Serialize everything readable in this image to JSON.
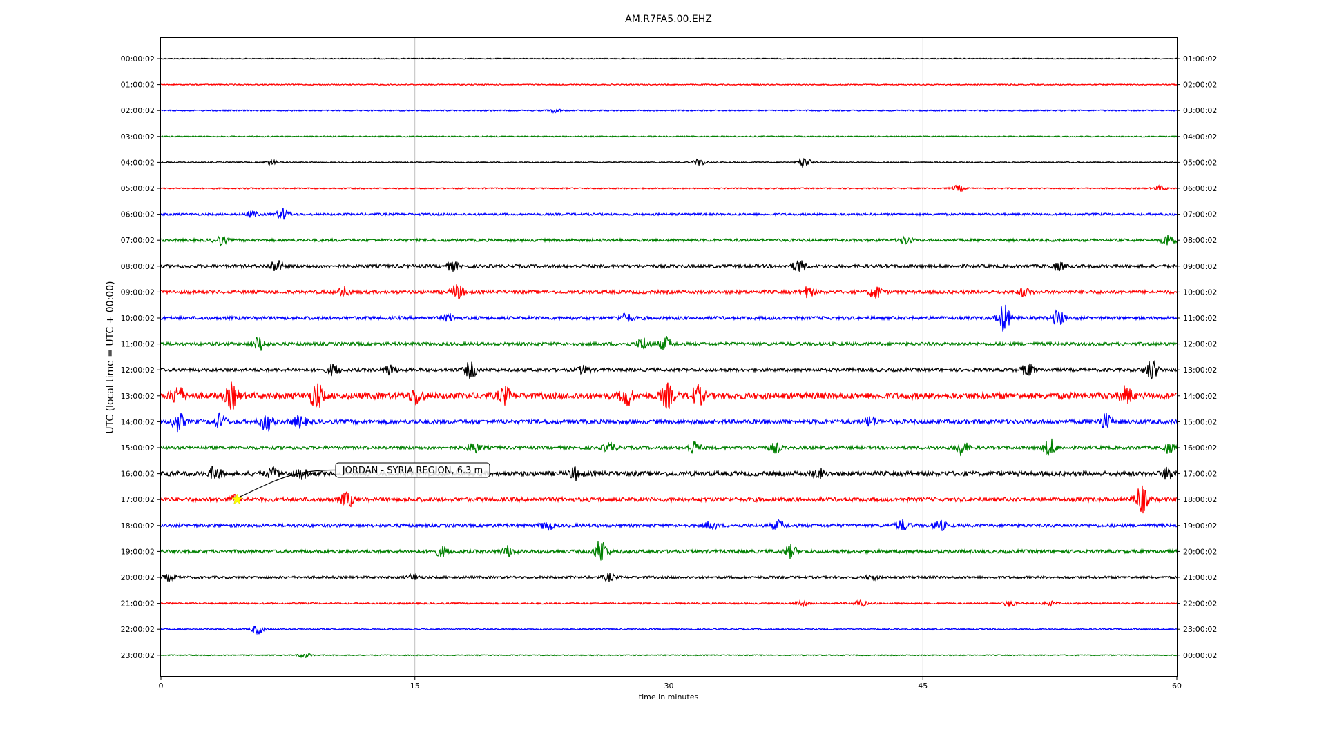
{
  "chart_data": {
    "type": "line",
    "title": "AM.R7FA5.00.EHZ",
    "xlabel": "time in minutes",
    "ylabel": "UTC (local time = UTC + 00:00)",
    "xlim": [
      0,
      60
    ],
    "x_ticks": [
      0,
      15,
      30,
      45,
      60
    ],
    "grid": "vertical",
    "colors": [
      "#000000",
      "#ff0000",
      "#0000ff",
      "#008000"
    ],
    "rows": [
      {
        "left": "00:00:02",
        "right": "01:00:02",
        "amp": 0.12,
        "events": []
      },
      {
        "left": "01:00:02",
        "right": "02:00:02",
        "amp": 0.14,
        "events": []
      },
      {
        "left": "02:00:02",
        "right": "03:00:02",
        "amp": 0.16,
        "events": [
          [
            23.3,
            0.5
          ]
        ]
      },
      {
        "left": "03:00:02",
        "right": "04:00:02",
        "amp": 0.15,
        "events": []
      },
      {
        "left": "04:00:02",
        "right": "05:00:02",
        "amp": 0.15,
        "events": [
          [
            6.5,
            0.6
          ],
          [
            31.8,
            0.9
          ],
          [
            38,
            1.4
          ]
        ]
      },
      {
        "left": "05:00:02",
        "right": "06:00:02",
        "amp": 0.16,
        "events": [
          [
            47.1,
            0.8
          ],
          [
            59,
            0.6
          ]
        ]
      },
      {
        "left": "06:00:02",
        "right": "07:00:02",
        "amp": 0.28,
        "events": [
          [
            5.4,
            0.8
          ],
          [
            7.2,
            1.5
          ]
        ]
      },
      {
        "left": "07:00:02",
        "right": "08:00:02",
        "amp": 0.35,
        "events": [
          [
            3.5,
            1.2
          ],
          [
            44,
            0.9
          ],
          [
            59.5,
            1.6
          ]
        ]
      },
      {
        "left": "08:00:02",
        "right": "09:00:02",
        "amp": 0.42,
        "events": [
          [
            6.8,
            1.5
          ],
          [
            17.2,
            1.1
          ],
          [
            37.7,
            1.8
          ],
          [
            53,
            1.0
          ]
        ]
      },
      {
        "left": "09:00:02",
        "right": "10:00:02",
        "amp": 0.42,
        "events": [
          [
            10.8,
            1.2
          ],
          [
            17.5,
            2.0
          ],
          [
            38.2,
            1.3
          ],
          [
            42.2,
            1.8
          ],
          [
            51,
            1.0
          ]
        ]
      },
      {
        "left": "10:00:02",
        "right": "11:00:02",
        "amp": 0.42,
        "events": [
          [
            17,
            0.9
          ],
          [
            27.5,
            1.1
          ],
          [
            49.8,
            3.6
          ],
          [
            53,
            1.9
          ]
        ]
      },
      {
        "left": "11:00:02",
        "right": "12:00:02",
        "amp": 0.42,
        "events": [
          [
            5.8,
            1.8
          ],
          [
            28.5,
            1.6
          ],
          [
            29.8,
            1.8
          ]
        ]
      },
      {
        "left": "12:00:02",
        "right": "13:00:02",
        "amp": 0.42,
        "events": [
          [
            10.2,
            1.5
          ],
          [
            13.5,
            1.3
          ],
          [
            18.3,
            2.1
          ],
          [
            25,
            1.0
          ],
          [
            51.2,
            1.6
          ],
          [
            58.5,
            2.6
          ]
        ]
      },
      {
        "left": "13:00:02",
        "right": "14:00:02",
        "amp": 0.85,
        "events": [
          [
            1,
            2.4
          ],
          [
            4.2,
            3.0
          ],
          [
            9.2,
            3.2
          ],
          [
            15.1,
            2.1
          ],
          [
            20.3,
            2.0
          ],
          [
            27.5,
            2.4
          ],
          [
            29.9,
            2.8
          ],
          [
            31.7,
            2.4
          ],
          [
            57,
            2.1
          ]
        ]
      },
      {
        "left": "14:00:02",
        "right": "15:00:02",
        "amp": 0.55,
        "events": [
          [
            1,
            2.4
          ],
          [
            3.5,
            2.0
          ],
          [
            6.2,
            2.3
          ],
          [
            8.2,
            1.5
          ],
          [
            41.9,
            1.3
          ],
          [
            55.8,
            2.0
          ]
        ]
      },
      {
        "left": "15:00:02",
        "right": "16:00:02",
        "amp": 0.42,
        "events": [
          [
            18.5,
            1.4
          ],
          [
            26.5,
            1.3
          ],
          [
            31.5,
            1.6
          ],
          [
            36.3,
            1.2
          ],
          [
            47.3,
            1.9
          ],
          [
            52.5,
            2.2
          ],
          [
            59.5,
            1.2
          ]
        ]
      },
      {
        "left": "16:00:02",
        "right": "17:00:02",
        "amp": 0.6,
        "events": [
          [
            3.2,
            1.6
          ],
          [
            6.6,
            1.2
          ],
          [
            8.3,
            1.1
          ],
          [
            24.5,
            1.5
          ],
          [
            38.9,
            1.0
          ],
          [
            59.5,
            1.5
          ]
        ]
      },
      {
        "left": "17:00:02",
        "right": "18:00:02",
        "amp": 0.55,
        "events": [
          [
            4.4,
            1.0
          ],
          [
            11,
            1.9
          ],
          [
            57.9,
            3.6
          ]
        ]
      },
      {
        "left": "18:00:02",
        "right": "19:00:02",
        "amp": 0.42,
        "events": [
          [
            22.8,
            1.2
          ],
          [
            32.5,
            1.1
          ],
          [
            36.5,
            1.2
          ],
          [
            43.8,
            1.3
          ],
          [
            46,
            1.3
          ]
        ]
      },
      {
        "left": "19:00:02",
        "right": "20:00:02",
        "amp": 0.42,
        "events": [
          [
            16.6,
            1.3
          ],
          [
            20.5,
            1.3
          ],
          [
            26,
            3.3
          ],
          [
            37.2,
            1.6
          ]
        ]
      },
      {
        "left": "20:00:02",
        "right": "21:00:02",
        "amp": 0.32,
        "events": [
          [
            0.5,
            0.8
          ],
          [
            14.9,
            0.8
          ],
          [
            26.5,
            0.9
          ],
          [
            42,
            0.6
          ]
        ]
      },
      {
        "left": "21:00:02",
        "right": "22:00:02",
        "amp": 0.2,
        "events": [
          [
            37.8,
            0.9
          ],
          [
            41.3,
            0.8
          ],
          [
            50.1,
            0.8
          ],
          [
            52.5,
            0.6
          ]
        ]
      },
      {
        "left": "22:00:02",
        "right": "23:00:02",
        "amp": 0.17,
        "events": [
          [
            5.7,
            1.2
          ]
        ]
      },
      {
        "left": "23:00:02",
        "right": "00:00:02",
        "amp": 0.13,
        "events": [
          [
            8.5,
            0.6
          ]
        ]
      }
    ],
    "annotation": {
      "text": "JORDAN - SYRIA REGION, 6.3 m",
      "row": 17,
      "minute": 4.5,
      "marker_color": "#ffff00"
    }
  }
}
